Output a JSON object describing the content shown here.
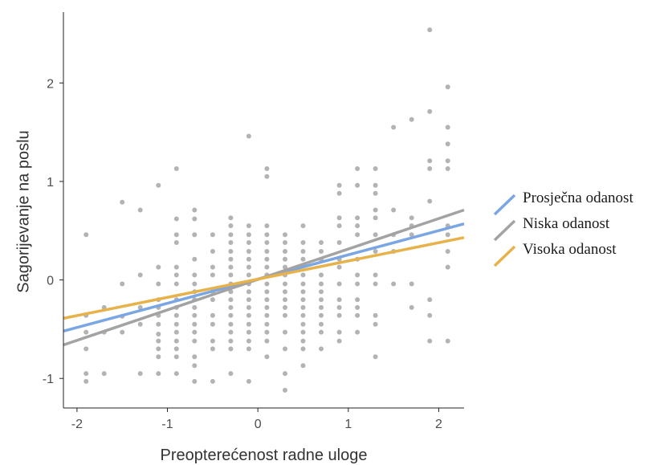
{
  "chart_data": {
    "type": "scatter",
    "xlabel": "Preopterećenost radne uloge",
    "ylabel": "Sagorijevanje na poslu",
    "xlim": [
      -2.15,
      2.28
    ],
    "ylim": [
      -1.3,
      2.72
    ],
    "x_ticks": [
      {
        "value": -2,
        "label": "-2"
      },
      {
        "value": -1,
        "label": "-1"
      },
      {
        "value": 0,
        "label": "0"
      },
      {
        "value": 1,
        "label": "1"
      },
      {
        "value": 2,
        "label": "2"
      }
    ],
    "y_ticks": [
      {
        "value": -1,
        "label": "-1"
      },
      {
        "value": 0,
        "label": "0"
      },
      {
        "value": 1,
        "label": "1"
      },
      {
        "value": 2,
        "label": "2"
      }
    ],
    "grid": false,
    "legend_position": "right",
    "series": [
      {
        "name": "Prosječna odanost",
        "color": "#7aa6e4",
        "x": [
          -2.15,
          2.28
        ],
        "y": [
          -0.52,
          0.57
        ]
      },
      {
        "name": "Niska odanost",
        "color": "#a3a3a3",
        "x": [
          -2.15,
          2.28
        ],
        "y": [
          -0.66,
          0.71
        ]
      },
      {
        "name": "Visoka odanost",
        "color": "#e8b24a",
        "x": [
          -2.15,
          2.28
        ],
        "y": [
          -0.39,
          0.43
        ]
      }
    ],
    "points": [
      [
        -1.9,
        0.46
      ],
      [
        -1.9,
        -0.36
      ],
      [
        -1.9,
        -0.53
      ],
      [
        -1.9,
        -0.7
      ],
      [
        -1.9,
        -0.95
      ],
      [
        -1.9,
        -1.03
      ],
      [
        -1.7,
        -0.28
      ],
      [
        -1.7,
        -0.53
      ],
      [
        -1.7,
        -0.95
      ],
      [
        -1.5,
        0.79
      ],
      [
        -1.5,
        -0.04
      ],
      [
        -1.5,
        -0.37
      ],
      [
        -1.5,
        -0.53
      ],
      [
        -1.3,
        0.71
      ],
      [
        -1.3,
        0.05
      ],
      [
        -1.3,
        -0.28
      ],
      [
        -1.3,
        -0.45
      ],
      [
        -1.3,
        -0.95
      ],
      [
        -1.1,
        0.96
      ],
      [
        -1.1,
        0.13
      ],
      [
        -1.1,
        -0.04
      ],
      [
        -1.1,
        -0.2
      ],
      [
        -1.1,
        -0.28
      ],
      [
        -1.1,
        -0.36
      ],
      [
        -1.1,
        -0.45
      ],
      [
        -1.1,
        -0.62
      ],
      [
        -1.1,
        -0.7
      ],
      [
        -1.1,
        -0.78
      ],
      [
        -1.1,
        -0.95
      ],
      [
        -1.1,
        -0.55
      ],
      [
        -0.9,
        1.13
      ],
      [
        -0.9,
        0.62
      ],
      [
        -0.9,
        0.46
      ],
      [
        -0.9,
        0.38
      ],
      [
        -0.9,
        0.13
      ],
      [
        -0.9,
        0.05
      ],
      [
        -0.9,
        -0.04
      ],
      [
        -0.9,
        -0.2
      ],
      [
        -0.9,
        -0.28
      ],
      [
        -0.9,
        -0.36
      ],
      [
        -0.9,
        -0.45
      ],
      [
        -0.9,
        -0.53
      ],
      [
        -0.9,
        -0.62
      ],
      [
        -0.9,
        -0.7
      ],
      [
        -0.9,
        -0.78
      ],
      [
        -0.9,
        -0.95
      ],
      [
        -0.7,
        0.71
      ],
      [
        -0.7,
        0.62
      ],
      [
        -0.7,
        0.46
      ],
      [
        -0.7,
        0.21
      ],
      [
        -0.7,
        0.05
      ],
      [
        -0.7,
        -0.04
      ],
      [
        -0.7,
        -0.12
      ],
      [
        -0.7,
        -0.2
      ],
      [
        -0.7,
        -0.28
      ],
      [
        -0.7,
        -0.36
      ],
      [
        -0.7,
        -0.45
      ],
      [
        -0.7,
        -0.53
      ],
      [
        -0.7,
        -0.62
      ],
      [
        -0.7,
        -0.78
      ],
      [
        -0.7,
        -0.87
      ],
      [
        -0.7,
        -1.03
      ],
      [
        -0.5,
        0.46
      ],
      [
        -0.5,
        0.29
      ],
      [
        -0.5,
        0.13
      ],
      [
        -0.5,
        0.05
      ],
      [
        -0.5,
        -0.12
      ],
      [
        -0.5,
        -0.2
      ],
      [
        -0.5,
        -0.36
      ],
      [
        -0.5,
        -0.45
      ],
      [
        -0.5,
        -0.62
      ],
      [
        -0.5,
        -0.7
      ],
      [
        -0.5,
        -1.03
      ],
      [
        -0.3,
        0.63
      ],
      [
        -0.3,
        0.55
      ],
      [
        -0.3,
        0.46
      ],
      [
        -0.3,
        0.38
      ],
      [
        -0.3,
        0.29
      ],
      [
        -0.3,
        0.21
      ],
      [
        -0.3,
        0.13
      ],
      [
        -0.3,
        0.05
      ],
      [
        -0.3,
        -0.04
      ],
      [
        -0.3,
        -0.12
      ],
      [
        -0.3,
        -0.2
      ],
      [
        -0.3,
        -0.28
      ],
      [
        -0.3,
        -0.36
      ],
      [
        -0.3,
        -0.45
      ],
      [
        -0.3,
        -0.53
      ],
      [
        -0.3,
        -0.62
      ],
      [
        -0.3,
        -0.7
      ],
      [
        -0.3,
        -0.95
      ],
      [
        -0.1,
        1.46
      ],
      [
        -0.1,
        0.55
      ],
      [
        -0.1,
        0.46
      ],
      [
        -0.1,
        0.38
      ],
      [
        -0.1,
        0.29
      ],
      [
        -0.1,
        0.21
      ],
      [
        -0.1,
        0.13
      ],
      [
        -0.1,
        0.05
      ],
      [
        -0.1,
        -0.04
      ],
      [
        -0.1,
        -0.12
      ],
      [
        -0.1,
        -0.2
      ],
      [
        -0.1,
        -0.28
      ],
      [
        -0.1,
        -0.36
      ],
      [
        -0.1,
        -0.45
      ],
      [
        -0.1,
        -0.53
      ],
      [
        -0.1,
        -0.62
      ],
      [
        -0.1,
        -0.7
      ],
      [
        -0.1,
        -1.03
      ],
      [
        0.1,
        1.13
      ],
      [
        0.1,
        1.05
      ],
      [
        0.1,
        0.55
      ],
      [
        0.1,
        0.46
      ],
      [
        0.1,
        0.38
      ],
      [
        0.1,
        0.29
      ],
      [
        0.1,
        0.21
      ],
      [
        0.1,
        0.13
      ],
      [
        0.1,
        0.05
      ],
      [
        0.1,
        -0.04
      ],
      [
        0.1,
        -0.12
      ],
      [
        0.1,
        -0.2
      ],
      [
        0.1,
        -0.28
      ],
      [
        0.1,
        -0.36
      ],
      [
        0.1,
        -0.45
      ],
      [
        0.1,
        -0.53
      ],
      [
        0.1,
        -0.62
      ],
      [
        0.1,
        -0.78
      ],
      [
        0.3,
        0.46
      ],
      [
        0.3,
        0.38
      ],
      [
        0.3,
        0.29
      ],
      [
        0.3,
        0.21
      ],
      [
        0.3,
        0.13
      ],
      [
        0.3,
        0.05
      ],
      [
        0.3,
        -0.04
      ],
      [
        0.3,
        -0.12
      ],
      [
        0.3,
        -0.2
      ],
      [
        0.3,
        -0.28
      ],
      [
        0.3,
        -0.36
      ],
      [
        0.3,
        -0.53
      ],
      [
        0.3,
        -0.7
      ],
      [
        0.3,
        -0.95
      ],
      [
        0.3,
        -1.12
      ],
      [
        0.5,
        0.55
      ],
      [
        0.5,
        0.38
      ],
      [
        0.5,
        0.29
      ],
      [
        0.5,
        0.21
      ],
      [
        0.5,
        0.05
      ],
      [
        0.5,
        -0.04
      ],
      [
        0.5,
        -0.12
      ],
      [
        0.5,
        -0.2
      ],
      [
        0.5,
        -0.28
      ],
      [
        0.5,
        -0.36
      ],
      [
        0.5,
        -0.45
      ],
      [
        0.5,
        -0.53
      ],
      [
        0.5,
        -0.62
      ],
      [
        0.5,
        -0.7
      ],
      [
        0.5,
        -0.87
      ],
      [
        0.7,
        0.38
      ],
      [
        0.7,
        0.29
      ],
      [
        0.7,
        0.21
      ],
      [
        0.7,
        0.05
      ],
      [
        0.7,
        -0.04
      ],
      [
        0.7,
        -0.12
      ],
      [
        0.7,
        -0.2
      ],
      [
        0.7,
        -0.28
      ],
      [
        0.7,
        -0.36
      ],
      [
        0.7,
        -0.45
      ],
      [
        0.7,
        -0.53
      ],
      [
        0.7,
        -0.7
      ],
      [
        0.9,
        0.96
      ],
      [
        0.9,
        0.88
      ],
      [
        0.9,
        0.63
      ],
      [
        0.9,
        0.55
      ],
      [
        0.9,
        0.38
      ],
      [
        0.9,
        0.21
      ],
      [
        0.9,
        0.13
      ],
      [
        0.9,
        -0.04
      ],
      [
        0.9,
        -0.2
      ],
      [
        0.9,
        -0.28
      ],
      [
        0.9,
        -0.36
      ],
      [
        0.9,
        -0.53
      ],
      [
        0.9,
        -0.62
      ],
      [
        1.1,
        1.13
      ],
      [
        1.1,
        0.96
      ],
      [
        1.1,
        0.63
      ],
      [
        1.1,
        0.55
      ],
      [
        1.1,
        0.46
      ],
      [
        1.1,
        0.21
      ],
      [
        1.1,
        0.05
      ],
      [
        1.1,
        -0.04
      ],
      [
        1.1,
        -0.2
      ],
      [
        1.1,
        -0.28
      ],
      [
        1.1,
        -0.36
      ],
      [
        1.1,
        -0.53
      ],
      [
        1.3,
        1.13
      ],
      [
        1.3,
        0.96
      ],
      [
        1.3,
        0.88
      ],
      [
        1.3,
        0.71
      ],
      [
        1.3,
        0.63
      ],
      [
        1.3,
        0.46
      ],
      [
        1.3,
        0.29
      ],
      [
        1.3,
        0.05
      ],
      [
        1.3,
        -0.04
      ],
      [
        1.3,
        -0.36
      ],
      [
        1.3,
        -0.45
      ],
      [
        1.3,
        -0.78
      ],
      [
        1.5,
        1.55
      ],
      [
        1.5,
        0.71
      ],
      [
        1.5,
        0.46
      ],
      [
        1.5,
        0.29
      ],
      [
        1.5,
        -0.04
      ],
      [
        1.7,
        1.63
      ],
      [
        1.7,
        0.63
      ],
      [
        1.7,
        0.55
      ],
      [
        1.7,
        0.46
      ],
      [
        1.7,
        -0.04
      ],
      [
        1.7,
        -0.28
      ],
      [
        1.9,
        2.54
      ],
      [
        1.9,
        1.71
      ],
      [
        1.9,
        1.21
      ],
      [
        1.9,
        1.13
      ],
      [
        1.9,
        0.8
      ],
      [
        1.9,
        -0.2
      ],
      [
        1.9,
        -0.36
      ],
      [
        1.9,
        -0.62
      ],
      [
        2.1,
        1.96
      ],
      [
        2.1,
        1.55
      ],
      [
        2.1,
        1.38
      ],
      [
        2.1,
        1.21
      ],
      [
        2.1,
        1.13
      ],
      [
        2.1,
        0.55
      ],
      [
        2.1,
        0.46
      ],
      [
        2.1,
        0.29
      ],
      [
        2.1,
        0.13
      ],
      [
        2.1,
        -0.62
      ]
    ]
  }
}
